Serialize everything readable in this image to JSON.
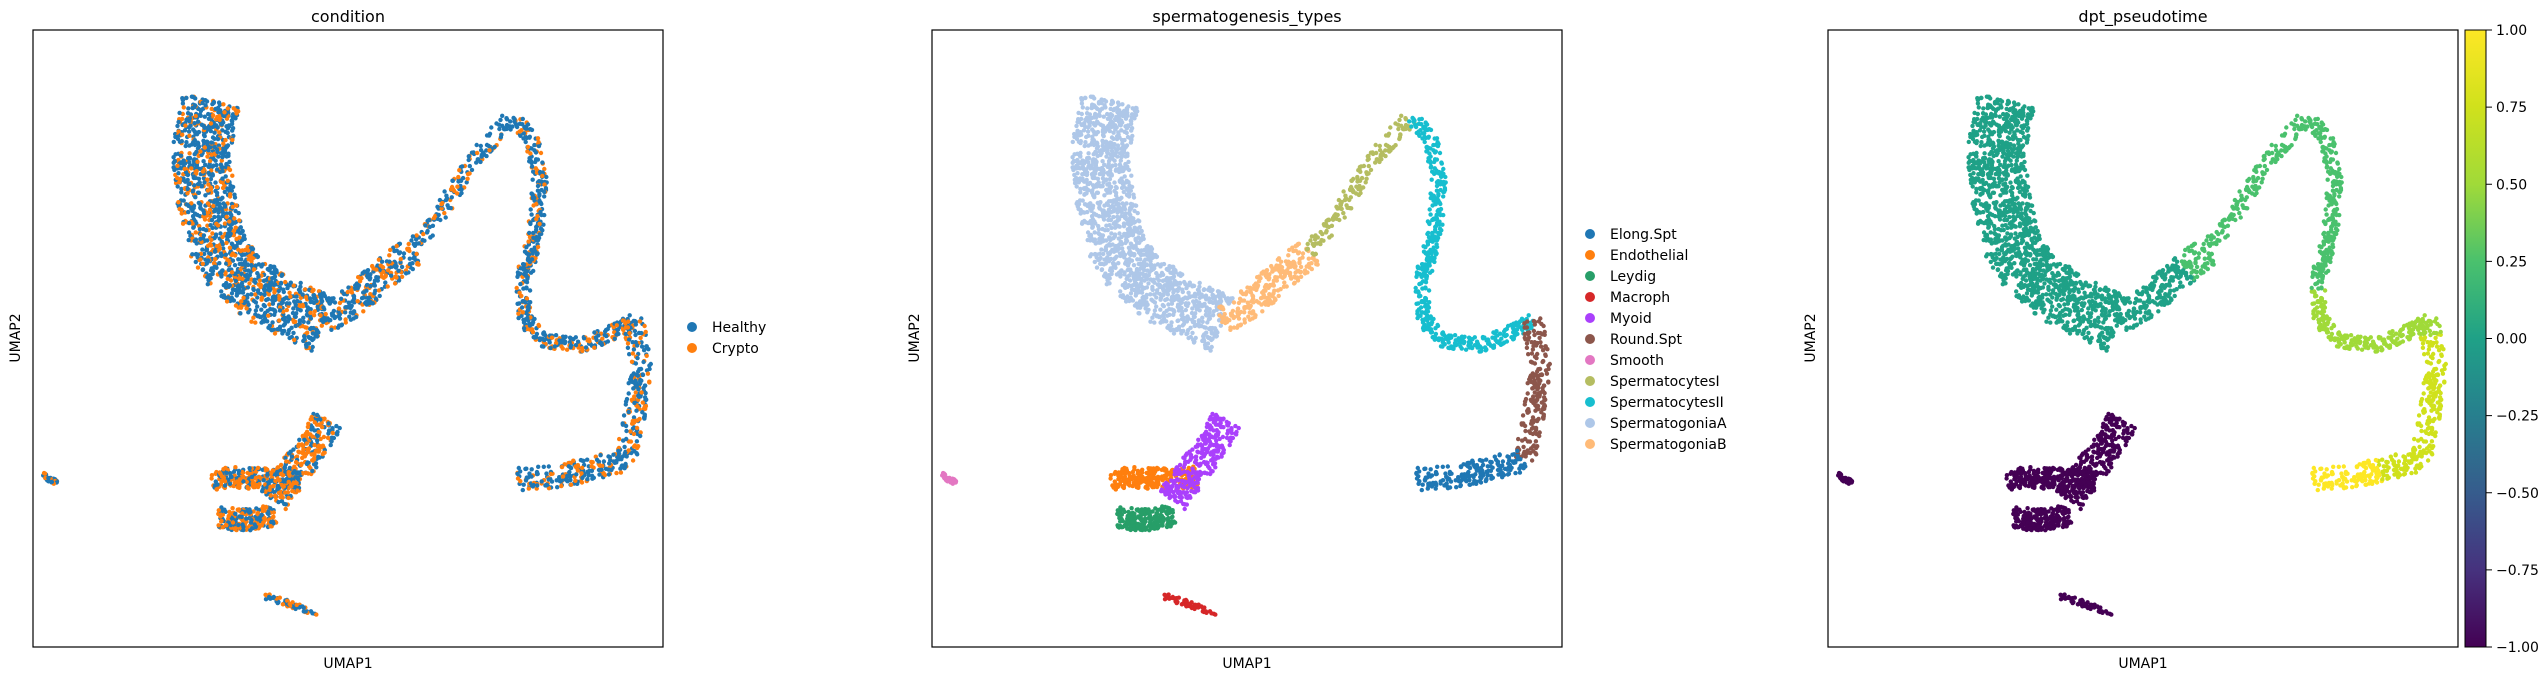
{
  "chart_data": [
    {
      "type": "scatter",
      "title": "condition",
      "xlabel": "UMAP1",
      "ylabel": "UMAP2",
      "legend_position": "right",
      "categories": [
        {
          "name": "Healthy",
          "color": "#1f77b4"
        },
        {
          "name": "Crypto",
          "color": "#ff7f0e"
        }
      ]
    },
    {
      "type": "scatter",
      "title": "spermatogenesis_types",
      "xlabel": "UMAP1",
      "ylabel": "UMAP2",
      "legend_position": "right",
      "categories": [
        {
          "name": "Elong.Spt",
          "color": "#1f77b4"
        },
        {
          "name": "Endothelial",
          "color": "#ff7f0e"
        },
        {
          "name": "Leydig",
          "color": "#279e68"
        },
        {
          "name": "Macroph",
          "color": "#d62728"
        },
        {
          "name": "Myoid",
          "color": "#aa40fc"
        },
        {
          "name": "Round.Spt",
          "color": "#8c564b"
        },
        {
          "name": "Smooth",
          "color": "#e377c2"
        },
        {
          "name": "SpermatocytesI",
          "color": "#b5bd61"
        },
        {
          "name": "SpermatocytesII",
          "color": "#17becf"
        },
        {
          "name": "SpermatogoniaA",
          "color": "#aec7e8"
        },
        {
          "name": "SpermatogoniaB",
          "color": "#ffbb78"
        }
      ]
    },
    {
      "type": "scatter",
      "title": "dpt_pseudotime",
      "xlabel": "UMAP1",
      "ylabel": "UMAP2",
      "colorbar": {
        "range": [
          -1.0,
          1.0
        ],
        "ticks": [
          "1.00",
          "0.75",
          "0.50",
          "0.25",
          "0.00",
          "−0.25",
          "−0.50",
          "−0.75",
          "−1.00"
        ],
        "colormap": "viridis"
      }
    }
  ]
}
